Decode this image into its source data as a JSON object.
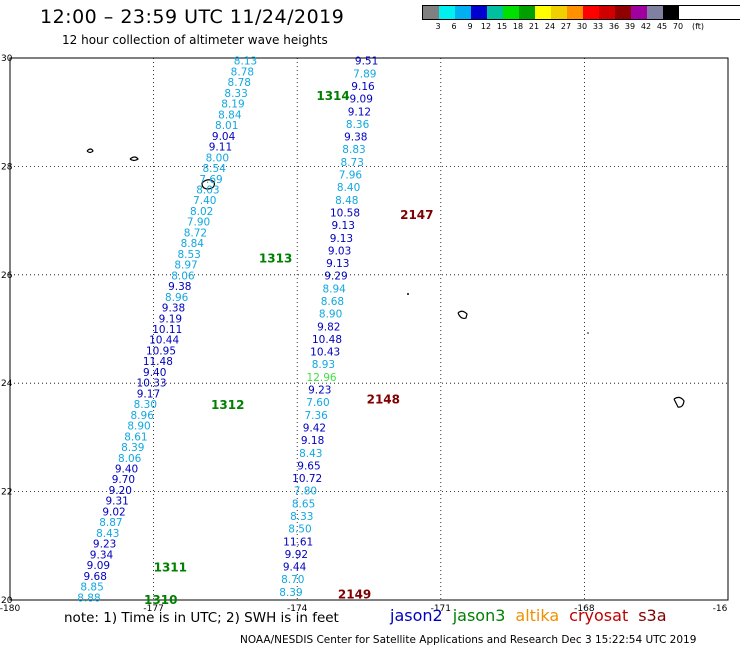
{
  "title": "12:00 – 23:59 UTC 11/24/2019",
  "subtitle": "12 hour collection of altimeter wave heights",
  "colorbar": {
    "colors": [
      "#808080",
      "#00f0f0",
      "#00b0f0",
      "#0000d0",
      "#00c0a0",
      "#00e000",
      "#00a000",
      "#ffff00",
      "#f0d000",
      "#ff9000",
      "#ff0000",
      "#d00000",
      "#900000",
      "#a000a0",
      "#8080a0",
      "#000000"
    ],
    "labels": [
      "3",
      "6",
      "9",
      "12",
      "15",
      "18",
      "21",
      "24",
      "27",
      "30",
      "33",
      "36",
      "39",
      "42",
      "45",
      "70"
    ],
    "unit": "(ft)"
  },
  "map": {
    "lon_range": [
      -180,
      -165
    ],
    "lat_range": [
      20,
      30
    ],
    "grid_lons": [
      -177,
      -174,
      -171,
      -168
    ],
    "grid_lats": [
      22,
      24,
      26,
      28
    ],
    "x_tick_labels": [
      "-180",
      "-177",
      "-174",
      "-171",
      "-168",
      "-16"
    ],
    "y_tick_labels": [
      "30",
      "28",
      "26",
      "24",
      "22",
      "20"
    ],
    "sat_colors": {
      "jason2": "#0000c0",
      "jason3": "#008000",
      "cryosat": "#800000",
      "light": "#10a8e0",
      "green": "#40e040"
    }
  },
  "chart_data": {
    "type": "scatter",
    "unit": "ft",
    "passes": [
      {
        "id": "1310-1314",
        "sat": "jason3",
        "start": [
          -178.35,
          20.05
        ],
        "end": [
          -175.08,
          29.95
        ],
        "values": [
          {
            "v": "8.88",
            "c": "light"
          },
          {
            "v": "8.85",
            "c": "light"
          },
          {
            "v": "9.68",
            "c": "dark"
          },
          {
            "v": "9.09",
            "c": "dark"
          },
          {
            "v": "9.34",
            "c": "dark"
          },
          {
            "v": "9.23",
            "c": "dark"
          },
          {
            "v": "8.43",
            "c": "light"
          },
          {
            "v": "8.87",
            "c": "light"
          },
          {
            "v": "9.02",
            "c": "dark"
          },
          {
            "v": "9.31",
            "c": "dark"
          },
          {
            "v": "9.20",
            "c": "dark"
          },
          {
            "v": "9.70",
            "c": "dark"
          },
          {
            "v": "9.40",
            "c": "dark"
          },
          {
            "v": "8.06",
            "c": "light"
          },
          {
            "v": "8.39",
            "c": "light"
          },
          {
            "v": "8.61",
            "c": "light"
          },
          {
            "v": "8.90",
            "c": "light"
          },
          {
            "v": "8.96",
            "c": "light"
          },
          {
            "v": "8.30",
            "c": "light"
          },
          {
            "v": "9.17",
            "c": "dark"
          },
          {
            "v": "10.33",
            "c": "dark"
          },
          {
            "v": "9.40",
            "c": "dark"
          },
          {
            "v": "11.48",
            "c": "dark"
          },
          {
            "v": "10.95",
            "c": "dark"
          },
          {
            "v": "10.44",
            "c": "dark"
          },
          {
            "v": "10.11",
            "c": "dark"
          },
          {
            "v": "9.19",
            "c": "dark"
          },
          {
            "v": "9.38",
            "c": "dark"
          },
          {
            "v": "8.96",
            "c": "light"
          },
          {
            "v": "9.38",
            "c": "dark"
          },
          {
            "v": "8.06",
            "c": "light"
          },
          {
            "v": "8.97",
            "c": "light"
          },
          {
            "v": "8.53",
            "c": "light"
          },
          {
            "v": "8.84",
            "c": "light"
          },
          {
            "v": "8.72",
            "c": "light"
          },
          {
            "v": "7.90",
            "c": "light"
          },
          {
            "v": "8.02",
            "c": "light"
          },
          {
            "v": "7.40",
            "c": "light"
          },
          {
            "v": "8.03",
            "c": "light"
          },
          {
            "v": "7.69",
            "c": "light"
          },
          {
            "v": "8.54",
            "c": "light"
          },
          {
            "v": "8.00",
            "c": "light"
          },
          {
            "v": "9.11",
            "c": "dark"
          },
          {
            "v": "9.04",
            "c": "dark"
          },
          {
            "v": "8.01",
            "c": "light"
          },
          {
            "v": "8.84",
            "c": "light"
          },
          {
            "v": "8.19",
            "c": "light"
          },
          {
            "v": "8.33",
            "c": "light"
          },
          {
            "v": "8.78",
            "c": "light"
          },
          {
            "v": "8.78",
            "c": "light"
          },
          {
            "v": "8.13",
            "c": "light"
          }
        ]
      },
      {
        "id": "2149-2147",
        "sat": "cryosat",
        "start": [
          -174.13,
          20.15
        ],
        "end": [
          -172.55,
          29.95
        ],
        "values": [
          {
            "v": "8.39",
            "c": "light"
          },
          {
            "v": "8.70",
            "c": "light"
          },
          {
            "v": "9.44",
            "c": "dark"
          },
          {
            "v": "9.92",
            "c": "dark"
          },
          {
            "v": "11.61",
            "c": "dark"
          },
          {
            "v": "8.50",
            "c": "light"
          },
          {
            "v": "8.33",
            "c": "light"
          },
          {
            "v": "8.65",
            "c": "light"
          },
          {
            "v": "7.80",
            "c": "light"
          },
          {
            "v": "10.72",
            "c": "dark"
          },
          {
            "v": "9.65",
            "c": "dark"
          },
          {
            "v": "8.43",
            "c": "light"
          },
          {
            "v": "9.18",
            "c": "dark"
          },
          {
            "v": "9.42",
            "c": "dark"
          },
          {
            "v": "7.36",
            "c": "light"
          },
          {
            "v": "7.60",
            "c": "light"
          },
          {
            "v": "9.23",
            "c": "dark"
          },
          {
            "v": "12.96",
            "c": "green"
          },
          {
            "v": "8.93",
            "c": "light"
          },
          {
            "v": "10.43",
            "c": "dark"
          },
          {
            "v": "10.48",
            "c": "dark"
          },
          {
            "v": "9.82",
            "c": "dark"
          },
          {
            "v": "8.90",
            "c": "light"
          },
          {
            "v": "8.68",
            "c": "light"
          },
          {
            "v": "8.94",
            "c": "light"
          },
          {
            "v": "9.29",
            "c": "dark"
          },
          {
            "v": "9.13",
            "c": "dark"
          },
          {
            "v": "9.03",
            "c": "dark"
          },
          {
            "v": "9.13",
            "c": "dark"
          },
          {
            "v": "9.13",
            "c": "dark"
          },
          {
            "v": "10.58",
            "c": "dark"
          },
          {
            "v": "8.48",
            "c": "light"
          },
          {
            "v": "8.40",
            "c": "light"
          },
          {
            "v": "7.96",
            "c": "light"
          },
          {
            "v": "8.73",
            "c": "light"
          },
          {
            "v": "8.83",
            "c": "light"
          },
          {
            "v": "9.38",
            "c": "dark"
          },
          {
            "v": "8.36",
            "c": "light"
          },
          {
            "v": "9.12",
            "c": "dark"
          },
          {
            "v": "9.09",
            "c": "dark"
          },
          {
            "v": "9.16",
            "c": "dark"
          },
          {
            "v": "7.89",
            "c": "light"
          },
          {
            "v": "9.51",
            "c": "dark"
          }
        ]
      }
    ],
    "pass_labels": [
      {
        "text": "1310",
        "lon": -177.2,
        "lat": 20.0,
        "sat": "jason3"
      },
      {
        "text": "1311",
        "lon": -177.0,
        "lat": 20.6,
        "sat": "jason3"
      },
      {
        "text": "1312",
        "lon": -175.8,
        "lat": 23.6,
        "sat": "jason3"
      },
      {
        "text": "1313",
        "lon": -174.8,
        "lat": 26.3,
        "sat": "jason3"
      },
      {
        "text": "1314",
        "lon": -173.6,
        "lat": 29.3,
        "sat": "jason3"
      },
      {
        "text": "2147",
        "lon": -171.85,
        "lat": 27.1,
        "sat": "cryosat"
      },
      {
        "text": "2148",
        "lon": -172.55,
        "lat": 23.7,
        "sat": "cryosat"
      },
      {
        "text": "2149",
        "lon": -173.15,
        "lat": 20.1,
        "sat": "cryosat"
      }
    ]
  },
  "note": "note:  1) Time is in UTC;  2) SWH is in feet",
  "legend": [
    {
      "name": "jason2",
      "color": "#0000c0"
    },
    {
      "name": "jason3",
      "color": "#008000"
    },
    {
      "name": "altika",
      "color": "#f09000"
    },
    {
      "name": "cryosat",
      "color": "#c00000"
    },
    {
      "name": "s3a",
      "color": "#800000"
    }
  ],
  "footer": "NOAA/NESDIS Center for Satellite Applications and Research     Dec  3 15:22:54 UTC 2019"
}
